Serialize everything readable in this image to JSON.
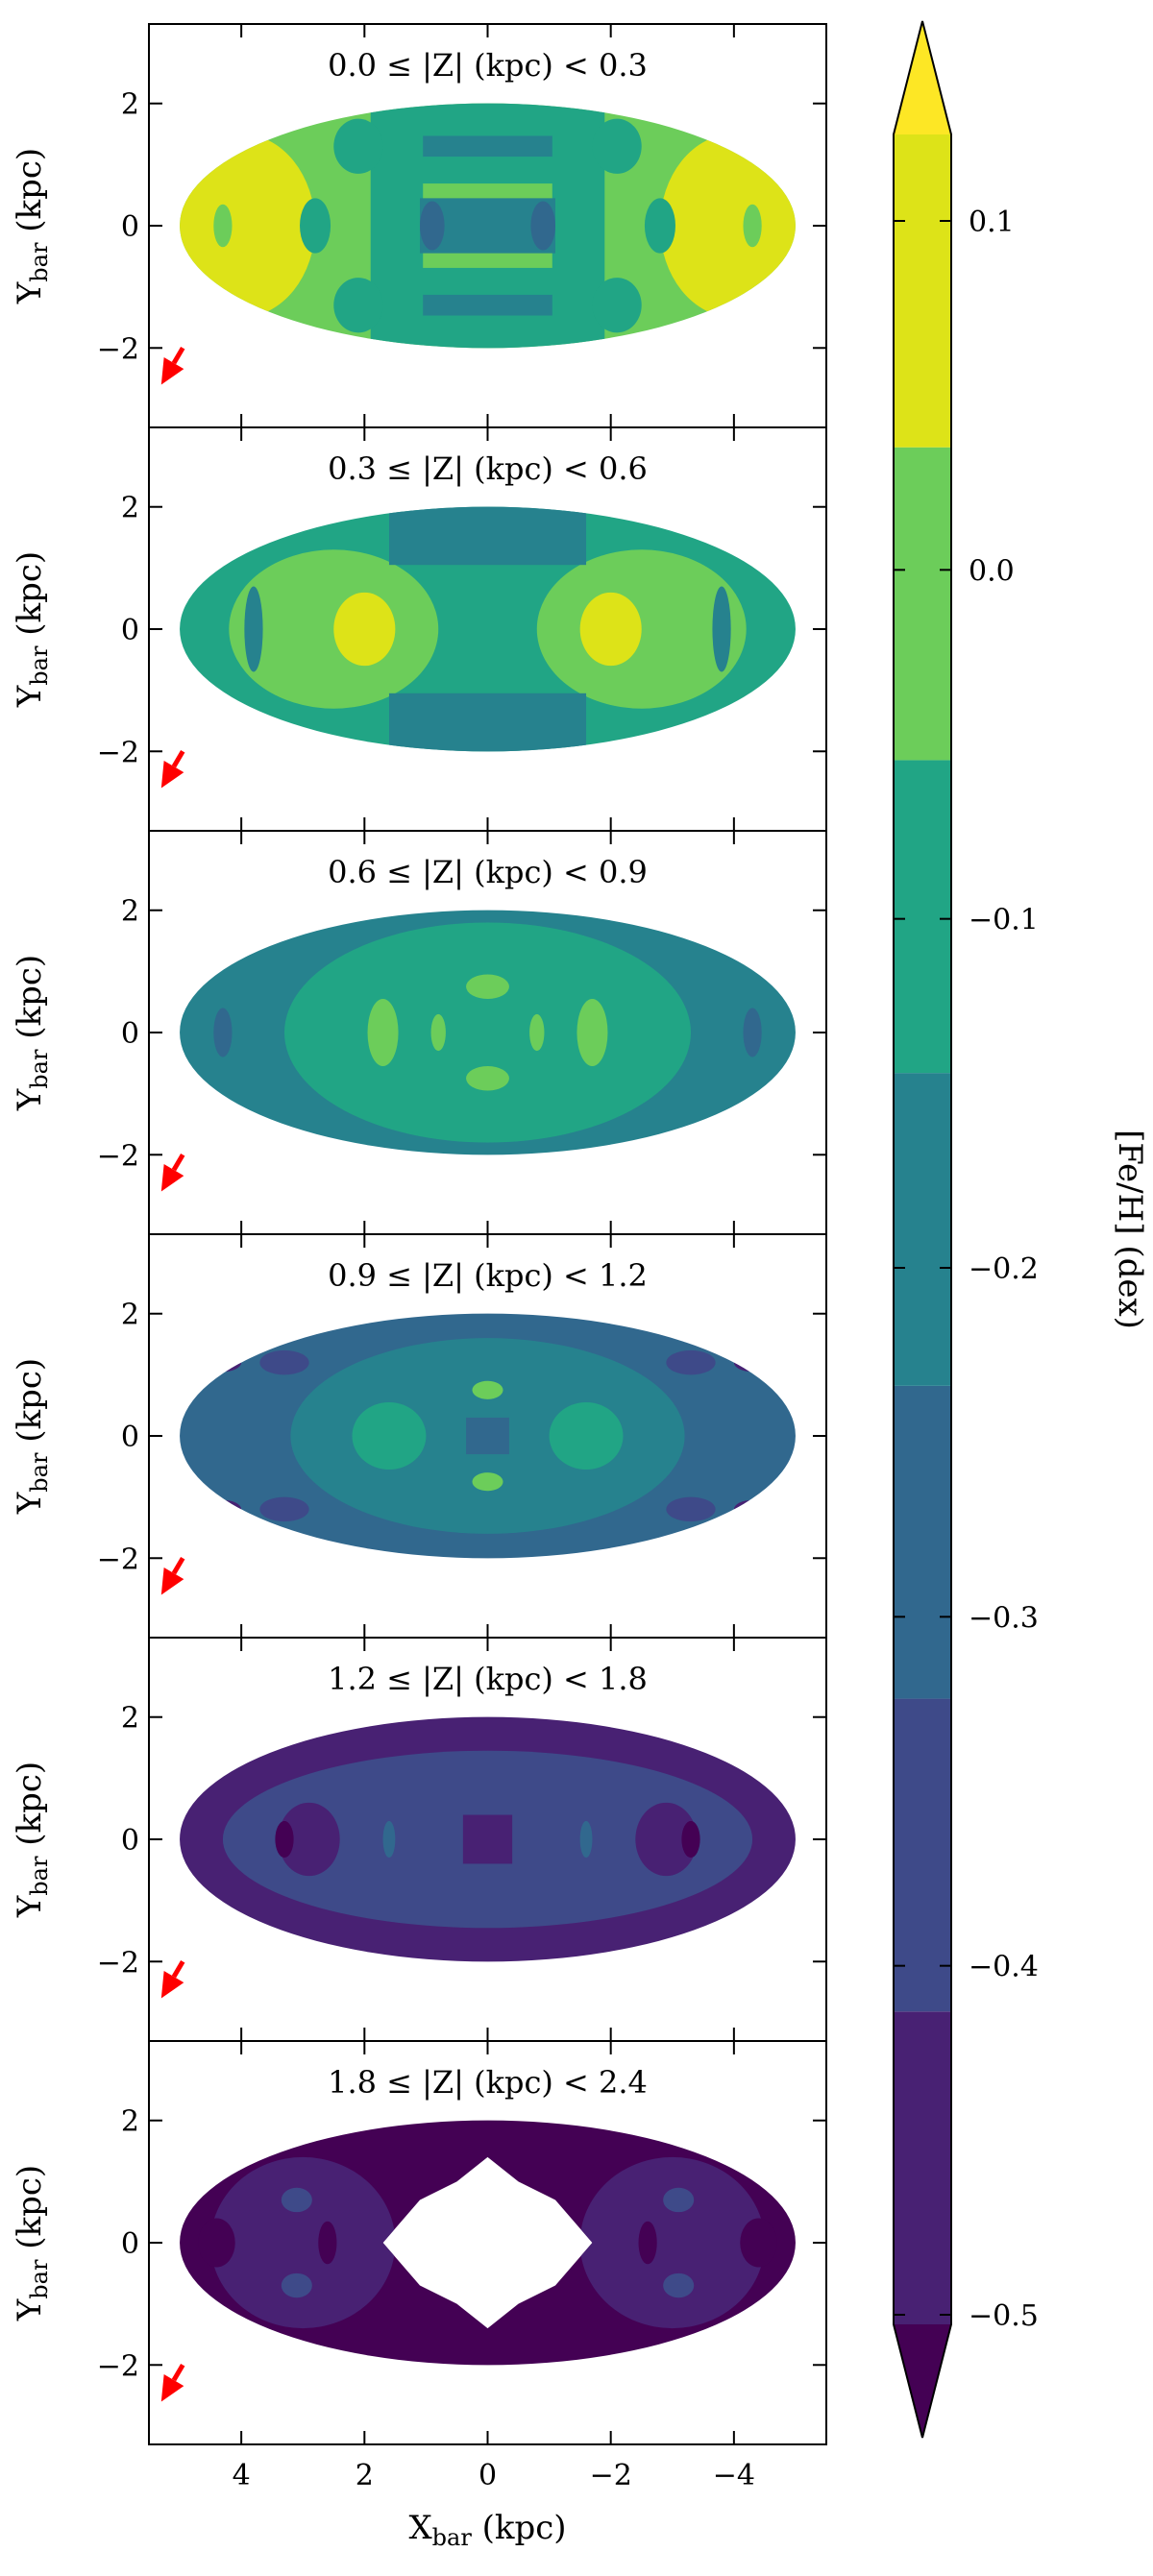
{
  "chart_data": {
    "type": "heatmap",
    "description_units": "kpc",
    "xlabel": "X",
    "xlabel_sub": "bar",
    "xlabel_unit": "(kpc)",
    "ylabel": "Y",
    "ylabel_sub": "bar",
    "ylabel_unit": "(kpc)",
    "xlim": [
      5.5,
      -5.5
    ],
    "ylim": [
      -3.3,
      3.3
    ],
    "x_ticks": [
      4,
      2,
      0,
      -2,
      -4
    ],
    "x_tick_labels": [
      "4",
      "2",
      "0",
      "−2",
      "−4"
    ],
    "y_ticks": [
      2,
      0,
      -2
    ],
    "y_tick_labels": [
      "2",
      "0",
      "−2"
    ],
    "ellipse_semi_axes_kpc": [
      5.0,
      2.0
    ],
    "colorbar": {
      "label": "[Fe/H] (dex)",
      "levels": [
        -0.55,
        -0.5,
        -0.4,
        -0.3,
        -0.2,
        -0.1,
        0.0,
        0.1,
        0.15
      ],
      "colors": [
        "#440154",
        "#482173",
        "#3e4a89",
        "#31688e",
        "#26828e",
        "#21a585",
        "#6ccd5a",
        "#dde318",
        "#fde725"
      ],
      "ticks": [
        0.1,
        0.0,
        -0.1,
        -0.2,
        -0.3,
        -0.4,
        -0.5
      ],
      "tick_labels": [
        "0.1",
        "0.0",
        "−0.1",
        "−0.2",
        "−0.3",
        "−0.4",
        "−0.5"
      ]
    },
    "arrow_color": "#ff0000",
    "panels": [
      {
        "title": "0.0 ≤ |Z| (kpc) < 0.3",
        "base_color_index": 6,
        "has_hole": false,
        "features": [
          {
            "shape": "ellipse",
            "cx": 4.0,
            "cy": 0,
            "rx": 1.2,
            "ry": 1.5,
            "color_index": 7
          },
          {
            "shape": "ellipse",
            "cx": -4.0,
            "cy": 0,
            "rx": 1.2,
            "ry": 1.5,
            "color_index": 7
          },
          {
            "shape": "rect",
            "cx": 0,
            "cy": 0,
            "rx": 1.9,
            "ry": 2.05,
            "color_index": 5
          },
          {
            "shape": "ellipse",
            "cx": 2.1,
            "cy": 1.3,
            "rx": 0.4,
            "ry": 0.45,
            "color_index": 5
          },
          {
            "shape": "ellipse",
            "cx": -2.1,
            "cy": 1.3,
            "rx": 0.4,
            "ry": 0.45,
            "color_index": 5
          },
          {
            "shape": "ellipse",
            "cx": 2.1,
            "cy": -1.3,
            "rx": 0.4,
            "ry": 0.45,
            "color_index": 5
          },
          {
            "shape": "ellipse",
            "cx": -2.1,
            "cy": -1.3,
            "rx": 0.4,
            "ry": 0.45,
            "color_index": 5
          },
          {
            "shape": "ellipse",
            "cx": 2.8,
            "cy": 0,
            "rx": 0.25,
            "ry": 0.45,
            "color_index": 5
          },
          {
            "shape": "ellipse",
            "cx": -2.8,
            "cy": 0,
            "rx": 0.25,
            "ry": 0.45,
            "color_index": 5
          },
          {
            "shape": "ellipse",
            "cx": 4.3,
            "cy": 0,
            "rx": 0.15,
            "ry": 0.35,
            "color_index": 6
          },
          {
            "shape": "ellipse",
            "cx": -4.3,
            "cy": 0,
            "rx": 0.15,
            "ry": 0.35,
            "color_index": 6
          },
          {
            "shape": "rect",
            "cx": 0,
            "cy": 1.3,
            "rx": 1.05,
            "ry": 0.17,
            "color_index": 4
          },
          {
            "shape": "rect",
            "cx": 0,
            "cy": -1.3,
            "rx": 1.05,
            "ry": 0.17,
            "color_index": 4
          },
          {
            "shape": "rect",
            "cx": 0,
            "cy": 0.55,
            "rx": 1.05,
            "ry": 0.14,
            "color_index": 6
          },
          {
            "shape": "rect",
            "cx": 0,
            "cy": -0.55,
            "rx": 1.05,
            "ry": 0.14,
            "color_index": 6
          },
          {
            "shape": "rect",
            "cx": 0,
            "cy": 0,
            "rx": 1.1,
            "ry": 0.45,
            "color_index": 4
          },
          {
            "shape": "ellipse",
            "cx": 0.9,
            "cy": 0,
            "rx": 0.2,
            "ry": 0.4,
            "color_index": 3
          },
          {
            "shape": "ellipse",
            "cx": -0.9,
            "cy": 0,
            "rx": 0.2,
            "ry": 0.4,
            "color_index": 3
          }
        ]
      },
      {
        "title": "0.3 ≤ |Z| (kpc) < 0.6",
        "base_color_index": 5,
        "has_hole": false,
        "features": [
          {
            "shape": "ellipse",
            "cx": 2.5,
            "cy": 0,
            "rx": 1.7,
            "ry": 1.3,
            "color_index": 6
          },
          {
            "shape": "ellipse",
            "cx": -2.5,
            "cy": 0,
            "rx": 1.7,
            "ry": 1.3,
            "color_index": 6
          },
          {
            "shape": "ellipse",
            "cx": 2.0,
            "cy": 0,
            "rx": 0.5,
            "ry": 0.6,
            "color_index": 7
          },
          {
            "shape": "ellipse",
            "cx": -2.0,
            "cy": 0,
            "rx": 0.5,
            "ry": 0.6,
            "color_index": 7
          },
          {
            "shape": "ellipse",
            "cx": 3.8,
            "cy": 0,
            "rx": 0.15,
            "ry": 0.7,
            "color_index": 4
          },
          {
            "shape": "ellipse",
            "cx": -3.8,
            "cy": 0,
            "rx": 0.15,
            "ry": 0.7,
            "color_index": 4
          },
          {
            "shape": "rect",
            "cx": 0,
            "cy": 1.55,
            "rx": 1.6,
            "ry": 0.5,
            "color_index": 4
          },
          {
            "shape": "rect",
            "cx": 0,
            "cy": -1.55,
            "rx": 1.6,
            "ry": 0.5,
            "color_index": 4
          }
        ]
      },
      {
        "title": "0.6 ≤ |Z| (kpc) < 0.9",
        "base_color_index": 4,
        "has_hole": false,
        "features": [
          {
            "shape": "ellipse",
            "cx": 0,
            "cy": 0,
            "rx": 3.3,
            "ry": 1.8,
            "color_index": 5
          },
          {
            "shape": "ellipse",
            "cx": 1.7,
            "cy": 0,
            "rx": 0.25,
            "ry": 0.55,
            "color_index": 6
          },
          {
            "shape": "ellipse",
            "cx": -1.7,
            "cy": 0,
            "rx": 0.25,
            "ry": 0.55,
            "color_index": 6
          },
          {
            "shape": "ellipse",
            "cx": 0,
            "cy": 0.75,
            "rx": 0.35,
            "ry": 0.2,
            "color_index": 6
          },
          {
            "shape": "ellipse",
            "cx": 0,
            "cy": -0.75,
            "rx": 0.35,
            "ry": 0.2,
            "color_index": 6
          },
          {
            "shape": "ellipse",
            "cx": 0.8,
            "cy": 0,
            "rx": 0.12,
            "ry": 0.3,
            "color_index": 6
          },
          {
            "shape": "ellipse",
            "cx": -0.8,
            "cy": 0,
            "rx": 0.12,
            "ry": 0.3,
            "color_index": 6
          },
          {
            "shape": "ellipse",
            "cx": 4.3,
            "cy": 0,
            "rx": 0.15,
            "ry": 0.4,
            "color_index": 3
          },
          {
            "shape": "ellipse",
            "cx": -4.3,
            "cy": 0,
            "rx": 0.15,
            "ry": 0.4,
            "color_index": 3
          }
        ]
      },
      {
        "title": "0.9 ≤ |Z| (kpc) < 1.2",
        "base_color_index": 3,
        "has_hole": false,
        "features": [
          {
            "shape": "ellipse",
            "cx": 0,
            "cy": 0,
            "rx": 3.2,
            "ry": 1.6,
            "color_index": 4
          },
          {
            "shape": "ellipse",
            "cx": 1.6,
            "cy": 0,
            "rx": 0.6,
            "ry": 0.55,
            "color_index": 5
          },
          {
            "shape": "ellipse",
            "cx": -1.6,
            "cy": 0,
            "rx": 0.6,
            "ry": 0.55,
            "color_index": 5
          },
          {
            "shape": "rect",
            "cx": 0,
            "cy": 0,
            "rx": 0.35,
            "ry": 0.3,
            "color_index": 3
          },
          {
            "shape": "ellipse",
            "cx": 0,
            "cy": 0.75,
            "rx": 0.25,
            "ry": 0.15,
            "color_index": 6
          },
          {
            "shape": "ellipse",
            "cx": 0,
            "cy": -0.75,
            "rx": 0.25,
            "ry": 0.15,
            "color_index": 6
          },
          {
            "shape": "ellipse",
            "cx": 3.3,
            "cy": 1.2,
            "rx": 0.4,
            "ry": 0.2,
            "color_index": 2
          },
          {
            "shape": "ellipse",
            "cx": -3.3,
            "cy": 1.2,
            "rx": 0.4,
            "ry": 0.2,
            "color_index": 2
          },
          {
            "shape": "ellipse",
            "cx": 3.3,
            "cy": -1.2,
            "rx": 0.4,
            "ry": 0.2,
            "color_index": 2
          },
          {
            "shape": "ellipse",
            "cx": -3.3,
            "cy": -1.2,
            "rx": 0.4,
            "ry": 0.2,
            "color_index": 2
          },
          {
            "shape": "ellipse",
            "cx": 4.3,
            "cy": 1.2,
            "rx": 0.3,
            "ry": 0.15,
            "color_index": 1
          },
          {
            "shape": "ellipse",
            "cx": -4.3,
            "cy": 1.2,
            "rx": 0.3,
            "ry": 0.15,
            "color_index": 1
          },
          {
            "shape": "ellipse",
            "cx": 4.3,
            "cy": -1.2,
            "rx": 0.3,
            "ry": 0.15,
            "color_index": 1
          },
          {
            "shape": "ellipse",
            "cx": -4.3,
            "cy": -1.2,
            "rx": 0.3,
            "ry": 0.15,
            "color_index": 1
          }
        ]
      },
      {
        "title": "1.2 ≤ |Z| (kpc) < 1.8",
        "base_color_index": 1,
        "has_hole": false,
        "features": [
          {
            "shape": "ellipse",
            "cx": 0,
            "cy": 0,
            "rx": 4.3,
            "ry": 1.45,
            "color_index": 2
          },
          {
            "shape": "ellipse",
            "cx": 2.9,
            "cy": 0,
            "rx": 0.5,
            "ry": 0.6,
            "color_index": 1
          },
          {
            "shape": "ellipse",
            "cx": -2.9,
            "cy": 0,
            "rx": 0.5,
            "ry": 0.6,
            "color_index": 1
          },
          {
            "shape": "ellipse",
            "cx": 3.3,
            "cy": 0,
            "rx": 0.15,
            "ry": 0.3,
            "color_index": 0
          },
          {
            "shape": "ellipse",
            "cx": -3.3,
            "cy": 0,
            "rx": 0.15,
            "ry": 0.3,
            "color_index": 0
          },
          {
            "shape": "rect",
            "cx": 0,
            "cy": 0,
            "rx": 0.4,
            "ry": 0.4,
            "color_index": 1
          },
          {
            "shape": "ellipse",
            "cx": 1.6,
            "cy": 0,
            "rx": 0.1,
            "ry": 0.3,
            "color_index": 3
          },
          {
            "shape": "ellipse",
            "cx": -1.6,
            "cy": 0,
            "rx": 0.1,
            "ry": 0.3,
            "color_index": 3
          }
        ]
      },
      {
        "title": "1.8 ≤ |Z| (kpc) < 2.4",
        "base_color_index": 0,
        "has_hole": true,
        "features": [
          {
            "shape": "ellipse",
            "cx": 3.0,
            "cy": 0,
            "rx": 1.5,
            "ry": 1.4,
            "color_index": 1
          },
          {
            "shape": "ellipse",
            "cx": -3.0,
            "cy": 0,
            "rx": 1.5,
            "ry": 1.4,
            "color_index": 1
          },
          {
            "shape": "ellipse",
            "cx": 4.4,
            "cy": 0,
            "rx": 0.3,
            "ry": 0.4,
            "color_index": 0
          },
          {
            "shape": "ellipse",
            "cx": -4.4,
            "cy": 0,
            "rx": 0.3,
            "ry": 0.4,
            "color_index": 0
          },
          {
            "shape": "ellipse",
            "cx": 2.6,
            "cy": 0,
            "rx": 0.15,
            "ry": 0.35,
            "color_index": 0
          },
          {
            "shape": "ellipse",
            "cx": -2.6,
            "cy": 0,
            "rx": 0.15,
            "ry": 0.35,
            "color_index": 0
          },
          {
            "shape": "ellipse",
            "cx": 3.1,
            "cy": 0.7,
            "rx": 0.25,
            "ry": 0.2,
            "color_index": 2
          },
          {
            "shape": "ellipse",
            "cx": -3.1,
            "cy": 0.7,
            "rx": 0.25,
            "ry": 0.2,
            "color_index": 2
          },
          {
            "shape": "ellipse",
            "cx": 3.1,
            "cy": -0.7,
            "rx": 0.25,
            "ry": 0.2,
            "color_index": 2
          },
          {
            "shape": "ellipse",
            "cx": -3.1,
            "cy": -0.7,
            "rx": 0.25,
            "ry": 0.2,
            "color_index": 2
          }
        ]
      }
    ]
  }
}
